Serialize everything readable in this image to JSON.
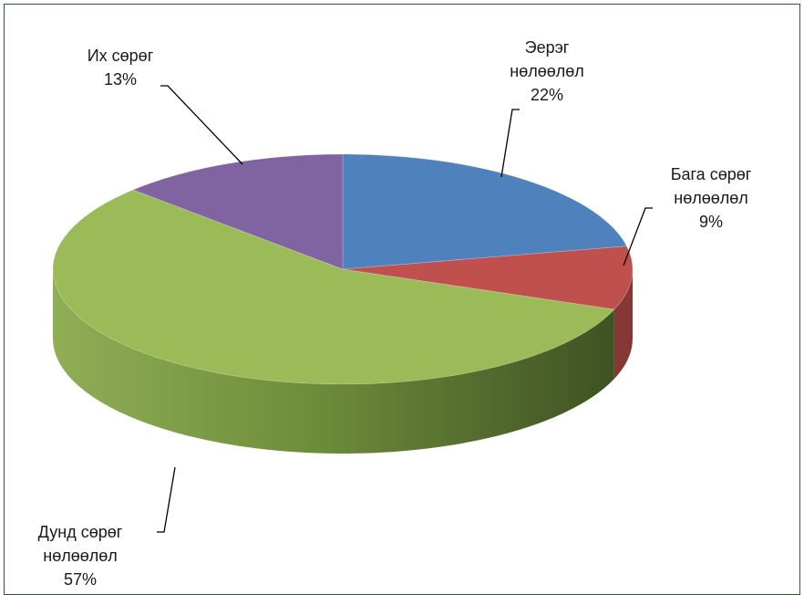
{
  "chart_data": {
    "type": "pie",
    "style": "3d",
    "slices": [
      {
        "name": "Эерэг нөлөөлөл",
        "label_lines": [
          "Эерэг",
          "нөлөөлөл",
          "22%"
        ],
        "value": 22,
        "color": "#4f81bd"
      },
      {
        "name": "Бага сөрөг нөлөөлөл",
        "label_lines": [
          "Бага сөрөг",
          "нөлөөлөл",
          "9%"
        ],
        "value": 9,
        "color": "#c0504d"
      },
      {
        "name": "Дунд сөрөг нөлөөлөл",
        "label_lines": [
          "Дунд сөрөг",
          "нөлөөлөл",
          "57%"
        ],
        "value": 57,
        "color": "#9bbb59"
      },
      {
        "name": "Их сөрөг",
        "label_lines": [
          "Их сөрөг",
          "13%"
        ],
        "value": 13,
        "color": "#8064a2"
      }
    ]
  }
}
